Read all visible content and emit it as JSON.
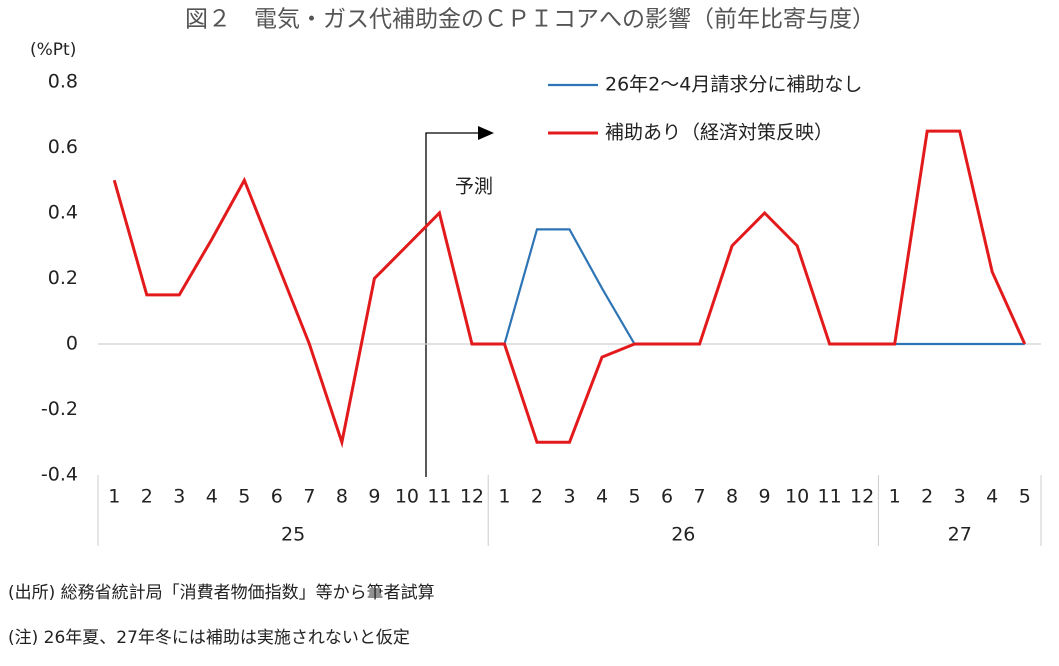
{
  "chart_data": {
    "type": "line",
    "title": "図２　電気・ガス代補助金のＣＰＩコアへの影響（前年比寄与度）",
    "y_label": "(%Pt)",
    "categories": [
      "1",
      "2",
      "3",
      "4",
      "5",
      "6",
      "7",
      "8",
      "9",
      "10",
      "11",
      "12",
      "1",
      "2",
      "3",
      "4",
      "5",
      "6",
      "7",
      "8",
      "9",
      "10",
      "11",
      "12",
      "1",
      "2",
      "3",
      "4",
      "5"
    ],
    "groups": [
      {
        "label": "25",
        "count": 12
      },
      {
        "label": "26",
        "count": 12
      },
      {
        "label": "27",
        "count": 5
      }
    ],
    "series": [
      {
        "name": "26年2～4月請求分に補助なし",
        "color": "#2e75b6",
        "values": [
          0.5,
          0.15,
          0.15,
          0.32,
          0.5,
          0.25,
          0,
          -0.3,
          0.2,
          0.3,
          0.4,
          0,
          0,
          0.35,
          0.35,
          0.17,
          0,
          0,
          0,
          0.3,
          0.4,
          0.3,
          0,
          0,
          0,
          0,
          0,
          0,
          0
        ]
      },
      {
        "name": "補助あり（経済対策反映）",
        "color": "#e31a1c",
        "values": [
          0.5,
          0.15,
          0.15,
          0.32,
          0.5,
          0.25,
          0,
          -0.3,
          0.2,
          0.3,
          0.4,
          0,
          0,
          -0.3,
          -0.3,
          -0.04,
          0,
          0,
          0,
          0.3,
          0.4,
          0.3,
          0,
          0,
          0,
          0.65,
          0.65,
          0.22,
          0
        ]
      }
    ],
    "annotation": "予測",
    "ylim": [
      -0.4,
      0.8
    ],
    "yticks": [
      -0.4,
      -0.2,
      0,
      0.2,
      0.4,
      0.6,
      0.8
    ],
    "legend": "top-right",
    "notes": [
      "(出所) 総務省統計局「消費者物価指数」等から筆者試算",
      "(注) 26年夏、27年冬には補助は実施されないと仮定"
    ]
  }
}
